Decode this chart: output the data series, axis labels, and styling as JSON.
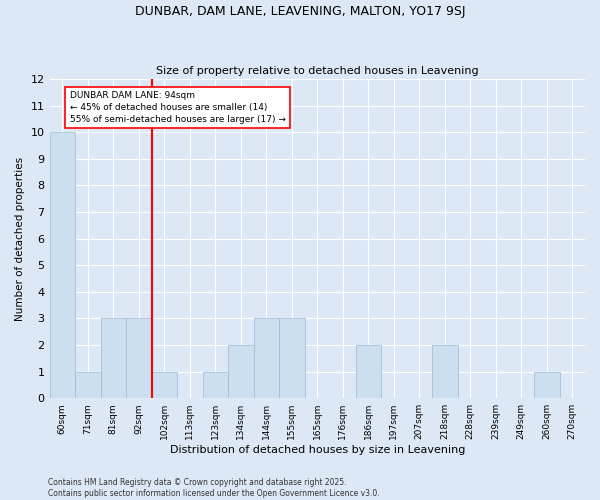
{
  "title_line1": "DUNBAR, DAM LANE, LEAVENING, MALTON, YO17 9SJ",
  "title_line2": "Size of property relative to detached houses in Leavening",
  "xlabel": "Distribution of detached houses by size in Leavening",
  "ylabel": "Number of detached properties",
  "categories": [
    "60sqm",
    "71sqm",
    "81sqm",
    "92sqm",
    "102sqm",
    "113sqm",
    "123sqm",
    "134sqm",
    "144sqm",
    "155sqm",
    "165sqm",
    "176sqm",
    "186sqm",
    "197sqm",
    "207sqm",
    "218sqm",
    "228sqm",
    "239sqm",
    "249sqm",
    "260sqm",
    "270sqm"
  ],
  "values": [
    10,
    1,
    3,
    3,
    1,
    0,
    1,
    2,
    3,
    3,
    0,
    0,
    2,
    0,
    0,
    2,
    0,
    0,
    0,
    1,
    0
  ],
  "bar_color": "#ccdff0",
  "bar_edge_color": "#a0b8d0",
  "red_line_label_title": "DUNBAR DAM LANE: 94sqm",
  "red_line_label_line1": "← 45% of detached houses are smaller (14)",
  "red_line_label_line2": "55% of semi-detached houses are larger (17) →",
  "ylim": [
    0,
    12
  ],
  "yticks": [
    0,
    1,
    2,
    3,
    4,
    5,
    6,
    7,
    8,
    9,
    10,
    11,
    12
  ],
  "background_color": "#dce8f5",
  "plot_bg_color": "#dce8f5",
  "grid_color": "#ffffff",
  "footer_line1": "Contains HM Land Registry data © Crown copyright and database right 2025.",
  "footer_line2": "Contains public sector information licensed under the Open Government Licence v3.0."
}
